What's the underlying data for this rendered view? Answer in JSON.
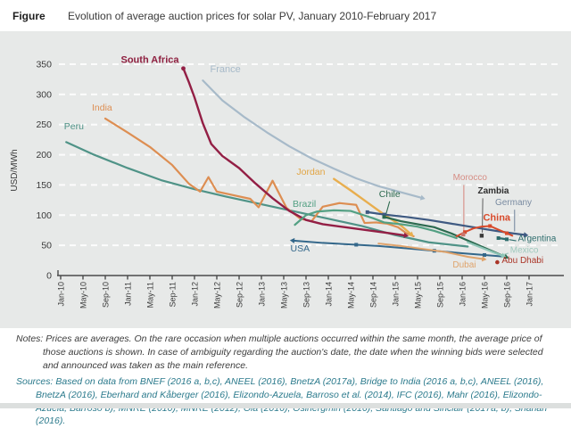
{
  "header": {
    "figure_label": "Figure",
    "title": "Evolution of average auction prices for solar PV, January 2010-February 2017"
  },
  "notes": {
    "label": "Notes:",
    "text": "Prices are averages. On the rare occasion when multiple auctions occurred within the same month, the average price of those auctions is shown. In case of ambiguity regarding the auction's date, the date when the winning bids were selected and announced was taken as the main reference."
  },
  "sources": {
    "label": "Sources:",
    "text": "Based on data from BNEF (2016 a, b,c), ANEEL (2016), BnetzA (2017a), Bridge to India (2016 a, b,c), ANEEL (2016), BnetzA (2016), Eberhard and Kåberger (2016), Elizondo-Azuela, Barroso et al. (2014), IFC (2016), Mahr (2016), Elizondo-Azuela, Barroso b), MNRE (2010), MNRE (2012), Ola (2016), Osinergmin (2016), Santiago and Sinclair (2017a, b), Shahan (2016)."
  },
  "chart_data": {
    "type": "line",
    "title": "Evolution of average auction prices for solar PV, January 2010-February 2017",
    "xlabel": "",
    "ylabel": "USD/MWh",
    "ylim": [
      0,
      350
    ],
    "yticks": [
      0,
      50,
      100,
      150,
      200,
      250,
      300,
      350
    ],
    "grid": "horizontal white dashed lines every 50 USD/MWh",
    "legend_position": "inline labels next to each series",
    "x_unit": "months since Jan-2010",
    "xticks_months": [
      0,
      4,
      8,
      12,
      16,
      20,
      24,
      28,
      32,
      36,
      40,
      44,
      48,
      52,
      56,
      60,
      64,
      68,
      72,
      76,
      80,
      84
    ],
    "xtick_labels": [
      "Jan-10",
      "May-10",
      "Sep-10",
      "Jan-11",
      "May-11",
      "Sep-11",
      "Jan-12",
      "May-12",
      "Sep-12",
      "Jan-13",
      "May-13",
      "Sep-13",
      "Jan-14",
      "May-14",
      "Sep-14",
      "Jan-15",
      "May-15",
      "Sep-15",
      "Jan-16",
      "May-16",
      "Sep-16",
      "Jan-17"
    ],
    "series": [
      {
        "name": "France",
        "color": "#a7bac9",
        "width": 2.2,
        "arrow_end": true,
        "points": [
          [
            25.5,
            323
          ],
          [
            29,
            290
          ],
          [
            33,
            262
          ],
          [
            37,
            237
          ],
          [
            41,
            214
          ],
          [
            45,
            194
          ],
          [
            49,
            177
          ],
          [
            53,
            161
          ],
          [
            57,
            148
          ],
          [
            61,
            138
          ],
          [
            65,
            128
          ]
        ]
      },
      {
        "name": "Peru",
        "color": "#4f9387",
        "width": 2.2,
        "points": [
          [
            1,
            221
          ],
          [
            6,
            200
          ],
          [
            12,
            178
          ],
          [
            18,
            158
          ],
          [
            24,
            143
          ],
          [
            30,
            130
          ],
          [
            36,
            118
          ],
          [
            42,
            106
          ],
          [
            48,
            94
          ],
          [
            54,
            82
          ],
          [
            60,
            67
          ],
          [
            66,
            55
          ],
          [
            73,
            48
          ]
        ]
      },
      {
        "name": "India",
        "color": "#dd8e52",
        "width": 2.2,
        "points": [
          [
            8,
            260
          ],
          [
            12,
            237
          ],
          [
            16,
            213
          ],
          [
            20,
            183
          ],
          [
            23,
            152
          ],
          [
            25,
            139
          ],
          [
            26.5,
            163
          ],
          [
            28,
            139
          ],
          [
            31,
            133
          ],
          [
            34,
            127
          ],
          [
            35.5,
            113
          ],
          [
            38,
            157
          ],
          [
            40.5,
            112
          ],
          [
            43,
            94
          ],
          [
            45,
            90
          ],
          [
            47,
            114
          ],
          [
            50,
            120
          ],
          [
            53,
            117
          ],
          [
            54.5,
            87
          ],
          [
            56.5,
            88
          ],
          [
            58.5,
            86
          ],
          [
            60.5,
            80
          ],
          [
            62,
            70
          ],
          [
            63.3,
            65
          ]
        ]
      },
      {
        "name": "South Africa",
        "color": "#931f45",
        "width": 2.4,
        "arrow_end": true,
        "dot_start": true,
        "points": [
          [
            22,
            343
          ],
          [
            23,
            320
          ],
          [
            24,
            295
          ],
          [
            25.5,
            252
          ],
          [
            27,
            218
          ],
          [
            29,
            198
          ],
          [
            32,
            178
          ],
          [
            35,
            152
          ],
          [
            38,
            128
          ],
          [
            41,
            107
          ],
          [
            44,
            92
          ],
          [
            47,
            85
          ],
          [
            51,
            80
          ],
          [
            55,
            75
          ],
          [
            59,
            70
          ],
          [
            62,
            66
          ]
        ]
      },
      {
        "name": "Jordan",
        "color": "#e8ae4e",
        "width": 2.4,
        "arrow_end": true,
        "points": [
          [
            49,
            160
          ],
          [
            52,
            141
          ],
          [
            55,
            121
          ],
          [
            58,
            101
          ],
          [
            61,
            83
          ],
          [
            63,
            67
          ]
        ]
      },
      {
        "name": "Brazil",
        "color": "#53a083",
        "width": 2.2,
        "points": [
          [
            42,
            84
          ],
          [
            44,
            100
          ],
          [
            46,
            106
          ],
          [
            49,
            108
          ],
          [
            52,
            107
          ],
          [
            54,
            101
          ],
          [
            56,
            95
          ],
          [
            58,
            88
          ],
          [
            61,
            85
          ],
          [
            64,
            81
          ],
          [
            67,
            74
          ],
          [
            69,
            68
          ],
          [
            71,
            62
          ]
        ]
      },
      {
        "name": "USA",
        "color": "#33678a",
        "width": 2,
        "arrow_start": true,
        "markers": [
          2,
          5,
          7
        ],
        "points": [
          [
            41.5,
            58
          ],
          [
            47,
            54
          ],
          [
            53,
            51
          ],
          [
            57,
            49
          ],
          [
            62,
            45
          ],
          [
            67,
            41
          ],
          [
            72,
            37
          ],
          [
            76,
            34
          ],
          [
            80,
            31
          ]
        ]
      },
      {
        "name": "Germany",
        "color": "#3f5a82",
        "width": 2.2,
        "arrow_end": true,
        "markers": [
          0,
          1
        ],
        "points": [
          [
            55,
            105
          ],
          [
            58,
            101
          ],
          [
            62,
            97
          ],
          [
            66,
            92
          ],
          [
            70,
            86
          ],
          [
            74,
            80
          ],
          [
            78,
            74
          ],
          [
            81,
            70
          ],
          [
            83.5,
            67
          ]
        ]
      },
      {
        "name": "Chile",
        "color": "#2c6a4f",
        "width": 2.2,
        "arrow_end": true,
        "markers": [
          0
        ],
        "points": [
          [
            58,
            97
          ],
          [
            61,
            90
          ],
          [
            64,
            85
          ],
          [
            67,
            80
          ],
          [
            70,
            70
          ],
          [
            73,
            58
          ],
          [
            76,
            46
          ],
          [
            78.5,
            36
          ],
          [
            80,
            30
          ]
        ]
      },
      {
        "name": "Dubai",
        "color": "#dfa36b",
        "width": 2,
        "arrow_end": true,
        "points": [
          [
            57,
            53
          ],
          [
            61,
            49
          ],
          [
            65,
            44
          ],
          [
            69,
            39
          ],
          [
            73,
            31
          ],
          [
            76,
            27
          ]
        ]
      },
      {
        "name": "Mexico",
        "color": "#8fc6b8",
        "width": 2.2,
        "arrow_end": true,
        "points": [
          [
            73,
            55
          ],
          [
            75.5,
            46
          ],
          [
            78,
            37
          ],
          [
            79.5,
            32
          ]
        ]
      },
      {
        "name": "China",
        "color": "#d84a2b",
        "width": 2,
        "markers": [
          1,
          4,
          6
        ],
        "points": [
          [
            71,
            65
          ],
          [
            72.5,
            72
          ],
          [
            74,
            78
          ],
          [
            75.5,
            81
          ],
          [
            77,
            82
          ],
          [
            78.5,
            76
          ],
          [
            80,
            70
          ],
          [
            81,
            66
          ]
        ]
      },
      {
        "name": "Argentina",
        "color": "#2e6d6d",
        "width": 2.2,
        "markers": [
          0,
          1
        ],
        "points": [
          [
            78.5,
            62
          ],
          [
            80,
            60
          ]
        ]
      }
    ],
    "single_points": [
      {
        "name": "Morocco",
        "month": 72.2,
        "value": 68,
        "color": "#c9766c",
        "shape": "square"
      },
      {
        "name": "Zambia",
        "month": 75.5,
        "value": 66,
        "color": "#3a3a3a",
        "shape": "square"
      },
      {
        "name": "Abu Dhabi",
        "month": 78.3,
        "value": 22,
        "color": "#aa3527",
        "shape": "dot"
      }
    ],
    "series_labels": [
      {
        "text": "Peru",
        "m": 0.6,
        "v": 242,
        "color": "#4f9387",
        "anchor": "start",
        "size": 10.5,
        "weight": "normal"
      },
      {
        "text": "India",
        "m": 5.6,
        "v": 273,
        "color": "#dd8e52",
        "anchor": "start",
        "size": 10.5,
        "weight": "normal"
      },
      {
        "text": "South Africa",
        "m": 21.2,
        "v": 352,
        "color": "#8e1f3f",
        "anchor": "end",
        "size": 11,
        "weight": "bold"
      },
      {
        "text": "France",
        "m": 26.8,
        "v": 337,
        "color": "#a7bac9",
        "anchor": "start",
        "size": 11,
        "weight": "normal"
      },
      {
        "text": "Jordan",
        "m": 42.3,
        "v": 167,
        "color": "#e2a544",
        "anchor": "start",
        "size": 10.5,
        "weight": "normal"
      },
      {
        "text": "Brazil",
        "m": 41.6,
        "v": 114,
        "color": "#53a083",
        "anchor": "start",
        "size": 10.5,
        "weight": "normal"
      },
      {
        "text": "Chile",
        "m": 59,
        "v": 130,
        "color": "#2c6a4f",
        "anchor": "middle",
        "size": 10.5,
        "weight": "normal"
      },
      {
        "text": "USA",
        "m": 41.2,
        "v": 40,
        "color": "#33678a",
        "anchor": "start",
        "size": 10.5,
        "weight": "normal"
      },
      {
        "text": "Morocco",
        "m": 73.4,
        "v": 158,
        "color": "#d68d84",
        "anchor": "middle",
        "size": 10,
        "weight": "normal"
      },
      {
        "text": "Zambia",
        "m": 77.6,
        "v": 136,
        "color": "#2f2f2f",
        "anchor": "middle",
        "size": 10,
        "weight": "bold"
      },
      {
        "text": "Germany",
        "m": 81.2,
        "v": 117,
        "color": "#7a8ba1",
        "anchor": "middle",
        "size": 10,
        "weight": "normal"
      },
      {
        "text": "China",
        "m": 78.2,
        "v": 91,
        "color": "#d84a2b",
        "anchor": "middle",
        "size": 11,
        "weight": "bold"
      },
      {
        "text": "Argentina",
        "m": 82,
        "v": 57,
        "color": "#2e6d6d",
        "anchor": "start",
        "size": 10,
        "weight": "normal"
      },
      {
        "text": "Mexico",
        "m": 80.6,
        "v": 38,
        "color": "#9fc9bd",
        "anchor": "start",
        "size": 10,
        "weight": "normal"
      },
      {
        "text": "Abu Dhabi",
        "m": 79.1,
        "v": 20.5,
        "color": "#aa3527",
        "anchor": "start",
        "size": 10,
        "weight": "normal"
      },
      {
        "text": "Dubai",
        "m": 70.3,
        "v": 13,
        "color": "#dfa36b",
        "anchor": "start",
        "size": 10,
        "weight": "normal"
      }
    ],
    "leader_lines": [
      {
        "name": "chile-pointer",
        "m1": 59,
        "v1": 123,
        "m2": 58.3,
        "v2": 100,
        "color": "#2c6a4f"
      },
      {
        "name": "morocco-pointer",
        "m1": 72.3,
        "v1": 150,
        "m2": 72.3,
        "v2": 72,
        "color": "#d68d84"
      },
      {
        "name": "zambia-pointer",
        "m1": 75.7,
        "v1": 128,
        "m2": 75.6,
        "v2": 71,
        "color": "#6a6a6a"
      },
      {
        "name": "germany-pointer",
        "m1": 81.4,
        "v1": 109,
        "m2": 81.4,
        "v2": 73,
        "color": "#7a8ba1"
      },
      {
        "name": "argentina-pointer",
        "m1": 80.4,
        "v1": 59.5,
        "m2": 81.7,
        "v2": 57.5,
        "color": "#2e6d6d"
      },
      {
        "name": "mexico-pointer",
        "m1": 80.3,
        "v1": 37,
        "m2": 79,
        "v2": 33.5,
        "color": "#9fc9bd"
      }
    ],
    "colors": {
      "panel_background": "#e7e9e8",
      "gridline": "#ffffff",
      "axis": "#4a4a4a",
      "tick_text": "#3a3a3a"
    }
  }
}
